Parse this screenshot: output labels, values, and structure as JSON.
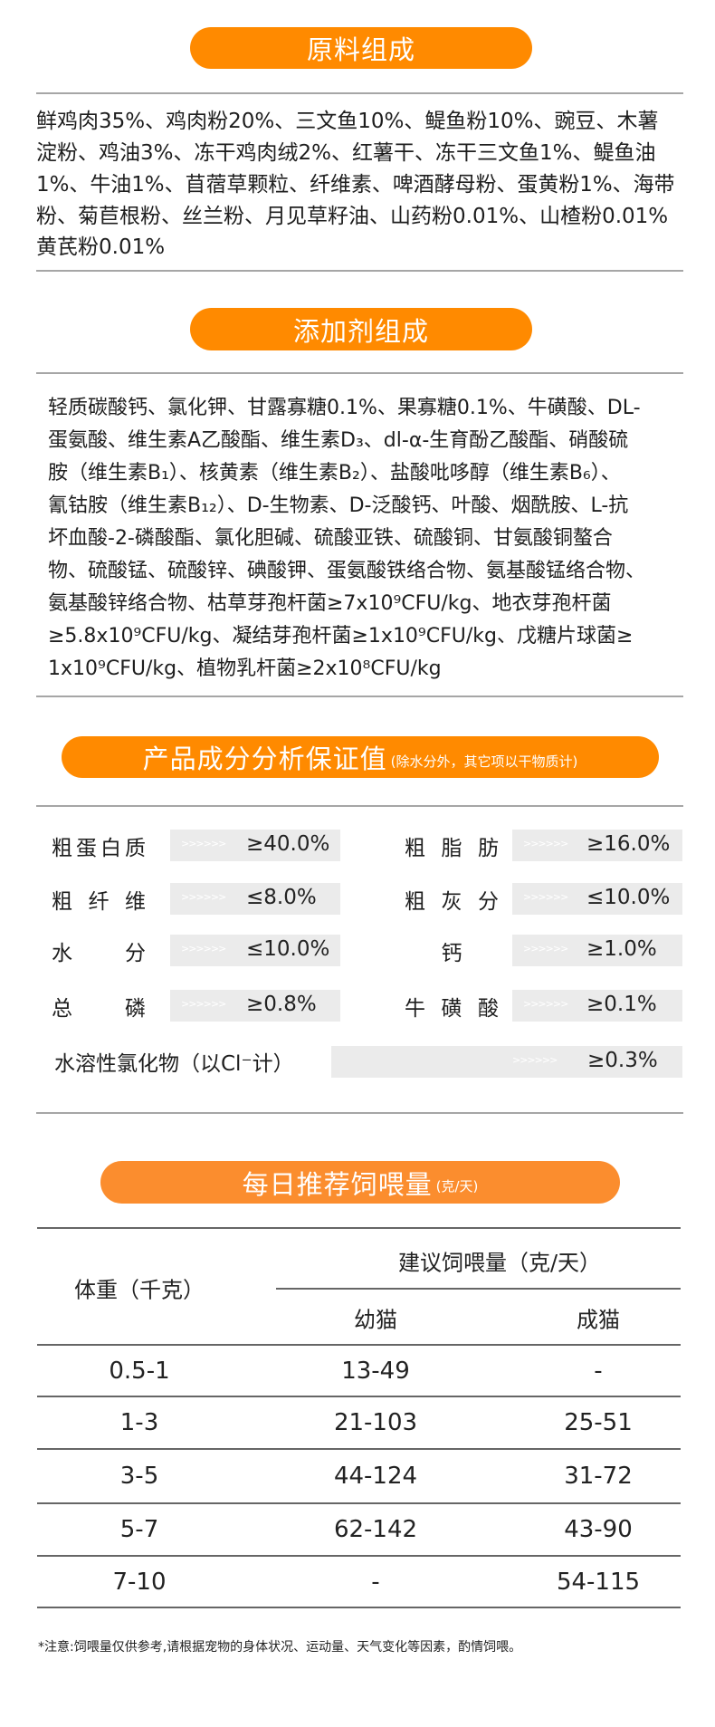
{
  "colors": {
    "accent": "#ff8a00",
    "accent_light": "#fb8d2e",
    "box": "#ebebeb"
  },
  "ingredients": {
    "title": "原料组成",
    "lines": [
      "鲜鸡肉35%、鸡肉粉20%、三文鱼10%、鳀鱼粉10%、豌豆、木薯",
      "淀粉、鸡油3%、冻干鸡肉绒2%、红薯干、冻干三文鱼1%、鳀鱼油",
      "1%、牛油1%、苜蓿草颗粒、纤维素、啤酒酵母粉、蛋黄粉1%、海带",
      "粉、菊苣根粉、丝兰粉、月见草籽油、山药粉0.01%、山楂粉0.01%",
      "黄芪粉0.01%"
    ]
  },
  "additives": {
    "title": "添加剂组成",
    "lines": [
      "轻质碳酸钙、氯化钾、甘露寡糖0.1%、果寡糖0.1%、牛磺酸、DL-",
      "蛋氨酸、维生素A乙酸酯、维生素D₃、dl-α-生育酚乙酸酯、硝酸硫",
      "胺（维生素B₁）、核黄素（维生素B₂）、盐酸吡哆醇（维生素B₆）、",
      "氰钴胺（维生素B₁₂）、D-生物素、D-泛酸钙、叶酸、烟酰胺、L-抗",
      "坏血酸-2-磷酸酯、氯化胆碱、硫酸亚铁、硫酸铜、甘氨酸铜螯合",
      "物、硫酸锰、硫酸锌、碘酸钾、蛋氨酸铁络合物、氨基酸锰络合物、",
      "氨基酸锌络合物、枯草芽孢杆菌≥7x10⁹CFU/kg、地衣芽孢杆菌",
      "≥5.8x10⁹CFU/kg、凝结芽孢杆菌≥1x10⁹CFU/kg、戊糖片球菌≥",
      "1x10⁹CFU/kg、植物乳杆菌≥2x10⁸CFU/kg"
    ]
  },
  "analysis": {
    "title": "产品成分分析保证值",
    "subtitle": "(除水分外，其它项以干物质计)",
    "arrows": ">>>>>>",
    "items": [
      {
        "label": "粗蛋白质",
        "value": "≥40.0%"
      },
      {
        "label": "粗脂肪",
        "value": "≥16.0%"
      },
      {
        "label": "粗纤维",
        "value": "≤8.0%"
      },
      {
        "label": "粗灰分",
        "value": "≤10.0%"
      },
      {
        "label": "水分",
        "value": "≤10.0%"
      },
      {
        "label": "钙",
        "value": "≥1.0%"
      },
      {
        "label": "总磷",
        "value": "≥0.8%"
      },
      {
        "label": "牛磺酸",
        "value": "≥0.1%"
      }
    ],
    "wide": {
      "label": "水溶性氯化物（以Cl⁻计）",
      "value": "≥0.3%"
    }
  },
  "feeding": {
    "title": "每日推荐饲喂量",
    "subtitle": "(克/天)",
    "headers": {
      "weight": "体重（千克）",
      "amount": "建议饲喂量（克/天）",
      "kitten": "幼猫",
      "adult": "成猫"
    },
    "rows": [
      [
        "0.5-1",
        "13-49",
        "-"
      ],
      [
        "1-3",
        "21-103",
        "25-51"
      ],
      [
        "3-5",
        "44-124",
        "31-72"
      ],
      [
        "5-7",
        "62-142",
        "43-90"
      ],
      [
        "7-10",
        "-",
        "54-115"
      ]
    ],
    "note": "*注意:饲喂量仅供参考,请根据宠物的身体状况、运动量、天气变化等因素，酌情饲喂。"
  }
}
